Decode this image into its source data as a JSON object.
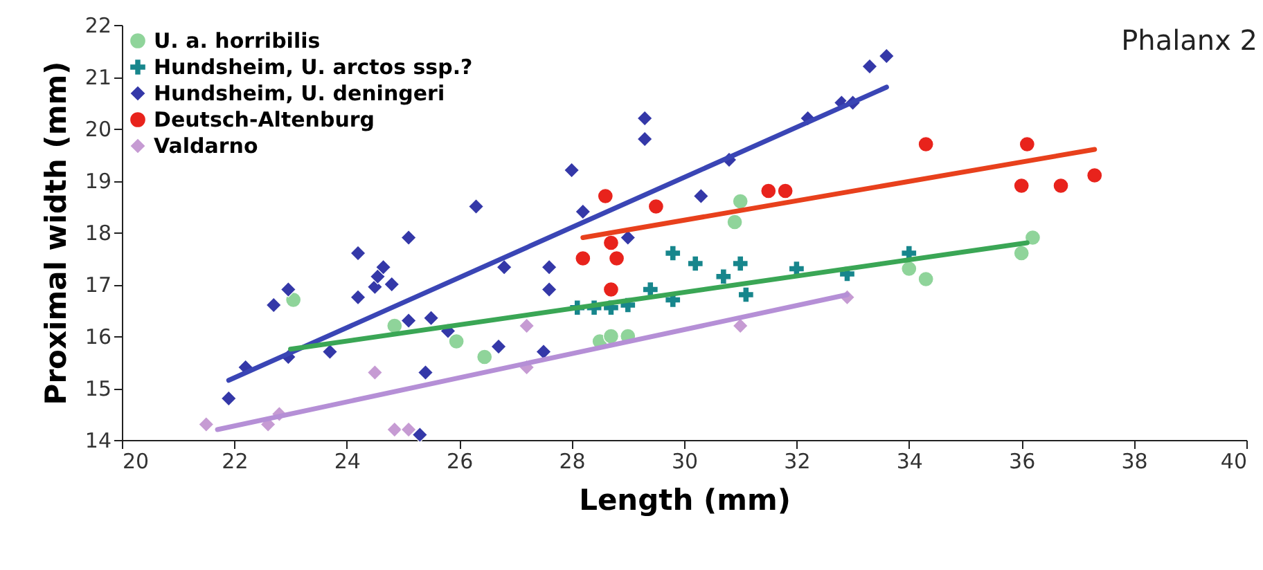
{
  "chart_data": {
    "type": "scatter",
    "title": "Phalanx 2",
    "xlabel": "Length (mm)",
    "ylabel": "Proximal width (mm)",
    "xlim": [
      20,
      40
    ],
    "xticks": [
      20,
      22,
      24,
      26,
      28,
      30,
      32,
      34,
      36,
      38,
      40
    ],
    "ylim": [
      14,
      22
    ],
    "yticks": [
      14,
      15,
      16,
      17,
      18,
      19,
      20,
      21,
      22
    ],
    "grid": false,
    "legend": "top left",
    "series": [
      {
        "name": "U. a. horribilis",
        "color": "#8fd49a",
        "marker": "circle",
        "x": [
          23.05,
          24.85,
          25.95,
          26.45,
          28.5,
          28.7,
          29.0,
          31.0,
          30.9,
          36.2,
          36.0,
          34.0,
          34.3
        ],
        "values": [
          16.7,
          16.2,
          15.9,
          15.6,
          15.9,
          16.0,
          16.0,
          18.6,
          18.2,
          17.9,
          17.6,
          17.3,
          17.1
        ]
      },
      {
        "name": "Hundsheim, U. arctos ssp.?",
        "color": "#17868c",
        "marker": "cross",
        "x": [
          28.1,
          28.4,
          28.7,
          29.0,
          29.4,
          29.8,
          29.8,
          30.2,
          30.7,
          31.0,
          31.1,
          32.0,
          32.9,
          34.0
        ],
        "values": [
          16.55,
          16.55,
          16.55,
          16.6,
          16.9,
          16.7,
          17.6,
          17.4,
          17.15,
          17.4,
          16.8,
          17.3,
          17.2,
          17.6
        ]
      },
      {
        "name": "Hundsheim, U. deningeri",
        "color": "#3438a8",
        "marker": "diamond",
        "x": [
          21.9,
          22.2,
          22.7,
          22.96,
          22.96,
          23.7,
          24.2,
          24.2,
          24.5,
          24.55,
          24.65,
          24.8,
          25.1,
          25.1,
          25.3,
          25.4,
          25.5,
          25.8,
          26.3,
          26.7,
          26.8,
          27.5,
          27.6,
          27.6,
          28.0,
          28.2,
          29.0,
          29.3,
          29.3,
          30.3,
          30.8,
          32.2,
          32.8,
          33.0,
          33.3,
          33.6
        ],
        "values": [
          14.8,
          15.4,
          16.6,
          16.9,
          15.6,
          15.7,
          16.75,
          17.6,
          16.95,
          17.15,
          17.33,
          17.0,
          17.9,
          16.3,
          14.1,
          15.3,
          16.35,
          16.1,
          18.5,
          15.8,
          17.33,
          15.7,
          17.33,
          16.9,
          19.2,
          18.4,
          17.9,
          20.2,
          19.8,
          18.7,
          19.4,
          20.2,
          20.5,
          20.5,
          21.2,
          21.4
        ]
      },
      {
        "name": "Deutsch-Altenburg",
        "color": "#e8231c",
        "marker": "circle",
        "x": [
          28.2,
          28.6,
          28.7,
          28.8,
          28.7,
          29.5,
          31.5,
          31.8,
          34.3,
          36.1,
          36.0,
          36.7,
          37.3
        ],
        "values": [
          17.5,
          18.7,
          17.8,
          17.5,
          16.9,
          18.5,
          18.8,
          18.8,
          19.7,
          19.7,
          18.9,
          18.9,
          19.1
        ]
      },
      {
        "name": "Valdarno",
        "color": "#c69bd3",
        "marker": "diamond",
        "x": [
          21.5,
          22.6,
          22.8,
          24.5,
          24.85,
          25.1,
          27.2,
          27.2,
          31.0,
          32.9
        ],
        "values": [
          14.3,
          14.3,
          14.5,
          15.3,
          14.2,
          14.2,
          16.2,
          15.4,
          16.2,
          16.75
        ]
      },
      {
        "type": "line",
        "color": "#3a45b5",
        "x": [
          21.9,
          33.6
        ],
        "values": [
          15.15,
          20.8
        ]
      },
      {
        "type": "line",
        "color": "#e8401c",
        "x": [
          28.2,
          37.3
        ],
        "values": [
          17.9,
          19.6
        ]
      },
      {
        "type": "line",
        "color": "#3aa655",
        "x": [
          23.0,
          36.1
        ],
        "values": [
          15.75,
          17.8
        ]
      },
      {
        "type": "line",
        "color": "#b58fd6",
        "x": [
          21.7,
          32.9
        ],
        "values": [
          14.2,
          16.8
        ]
      }
    ]
  }
}
